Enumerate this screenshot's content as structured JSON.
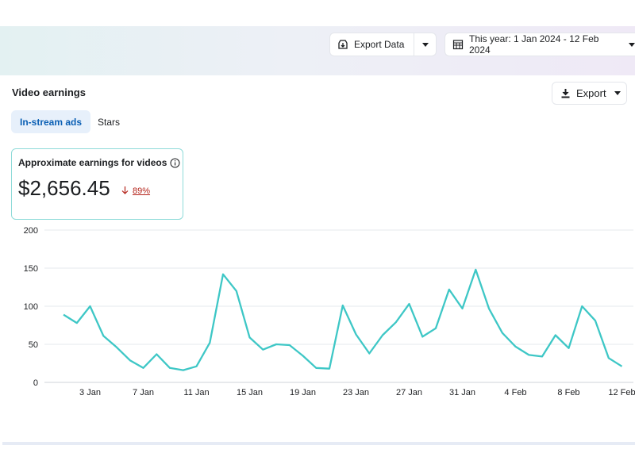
{
  "toolbar": {
    "export_data_label": "Export Data",
    "date_range_label": "This year: 1 Jan 2024 - 12 Feb 2024"
  },
  "card": {
    "title": "Video earnings",
    "export_label": "Export",
    "tabs": [
      {
        "label": "In-stream ads",
        "active": true
      },
      {
        "label": "Stars",
        "active": false
      }
    ],
    "metric": {
      "label": "Approximate earnings for videos",
      "value": "$2,656.45",
      "change": "89%",
      "change_direction": "down"
    }
  },
  "colors": {
    "line": "#3ec7c6",
    "accent": "#0a5fb4",
    "negative": "#b4231a"
  },
  "chart_data": {
    "type": "line",
    "x_ticks": [
      "3 Jan",
      "7 Jan",
      "11 Jan",
      "15 Jan",
      "19 Jan",
      "23 Jan",
      "27 Jan",
      "31 Jan",
      "4 Feb",
      "8 Feb",
      "12 Feb"
    ],
    "y_ticks": [
      0,
      50,
      100,
      150,
      200
    ],
    "ylim": [
      0,
      200
    ],
    "grid": true,
    "x": [
      "2024-01-01",
      "2024-01-02",
      "2024-01-03",
      "2024-01-04",
      "2024-01-05",
      "2024-01-06",
      "2024-01-07",
      "2024-01-08",
      "2024-01-09",
      "2024-01-10",
      "2024-01-11",
      "2024-01-12",
      "2024-01-13",
      "2024-01-14",
      "2024-01-15",
      "2024-01-16",
      "2024-01-17",
      "2024-01-18",
      "2024-01-19",
      "2024-01-20",
      "2024-01-21",
      "2024-01-22",
      "2024-01-23",
      "2024-01-24",
      "2024-01-25",
      "2024-01-26",
      "2024-01-27",
      "2024-01-28",
      "2024-01-29",
      "2024-01-30",
      "2024-01-31",
      "2024-02-01",
      "2024-02-02",
      "2024-02-03",
      "2024-02-04",
      "2024-02-05",
      "2024-02-06",
      "2024-02-07",
      "2024-02-08",
      "2024-02-09",
      "2024-02-10",
      "2024-02-11",
      "2024-02-12"
    ],
    "values": [
      89,
      78,
      100,
      61,
      46,
      29,
      19,
      37,
      19,
      16,
      21,
      52,
      142,
      120,
      59,
      43,
      50,
      49,
      35,
      19,
      18,
      101,
      63,
      38,
      62,
      79,
      103,
      60,
      71,
      122,
      97,
      148,
      97,
      65,
      47,
      36,
      34,
      62,
      45,
      100,
      81,
      32,
      21
    ]
  }
}
